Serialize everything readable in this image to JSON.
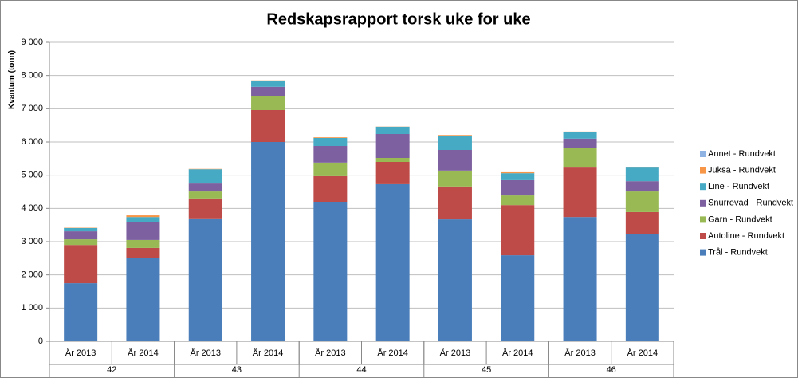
{
  "chart_data": {
    "type": "stacked_bar",
    "title": "Redskapsrapport torsk uke for uke",
    "y_label": "Kvantum (tonn)",
    "categories": [
      "År 2013",
      "År 2014",
      "År 2013",
      "År 2014",
      "År 2013",
      "År 2014",
      "År 2013",
      "År 2014",
      "År 2013",
      "År 2014"
    ],
    "category_groups": [
      "42",
      "43",
      "44",
      "45",
      "46"
    ],
    "series": [
      {
        "name": "Trål - Rundvekt",
        "color": "#4a7ebb",
        "values": [
          1750,
          2520,
          3700,
          6000,
          4200,
          4730,
          3670,
          2590,
          3740,
          3240
        ]
      },
      {
        "name": "Autoline - Rundvekt",
        "color": "#be4b48",
        "values": [
          1150,
          290,
          600,
          960,
          770,
          670,
          990,
          1510,
          1490,
          650
        ]
      },
      {
        "name": "Garn - Rundvekt",
        "color": "#98b954",
        "values": [
          170,
          240,
          210,
          430,
          410,
          120,
          480,
          290,
          600,
          620
        ]
      },
      {
        "name": "Snurrevad - Rundvekt",
        "color": "#7d60a0",
        "values": [
          240,
          530,
          240,
          270,
          500,
          720,
          620,
          460,
          270,
          310
        ]
      },
      {
        "name": "Line - Rundvekt",
        "color": "#46aac5",
        "values": [
          100,
          160,
          430,
          190,
          240,
          220,
          430,
          210,
          210,
          410
        ]
      },
      {
        "name": "Juksa - Rundvekt",
        "color": "#f79646",
        "values": [
          10,
          50,
          10,
          5,
          20,
          5,
          20,
          30,
          5,
          20
        ]
      },
      {
        "name": "Annet - Rundvekt",
        "color": "#8fb4e3",
        "values": [
          0,
          0,
          0,
          0,
          0,
          0,
          0,
          0,
          0,
          0
        ]
      }
    ],
    "ylim": [
      0,
      9000
    ],
    "yticks": [
      0,
      {
        "value": 1000,
        "label": "1 000"
      },
      {
        "value": 2000,
        "label": "2 000"
      },
      {
        "value": 3000,
        "label": "3 000"
      },
      {
        "value": 4000,
        "label": "4 000"
      },
      {
        "value": 5000,
        "label": "5 000"
      },
      {
        "value": 6000,
        "label": "6 000"
      },
      {
        "value": 7000,
        "label": "7 000"
      },
      {
        "value": 8000,
        "label": "8 000"
      },
      {
        "value": 9000,
        "label": "9 000"
      }
    ],
    "grid": true,
    "legend": "right"
  }
}
